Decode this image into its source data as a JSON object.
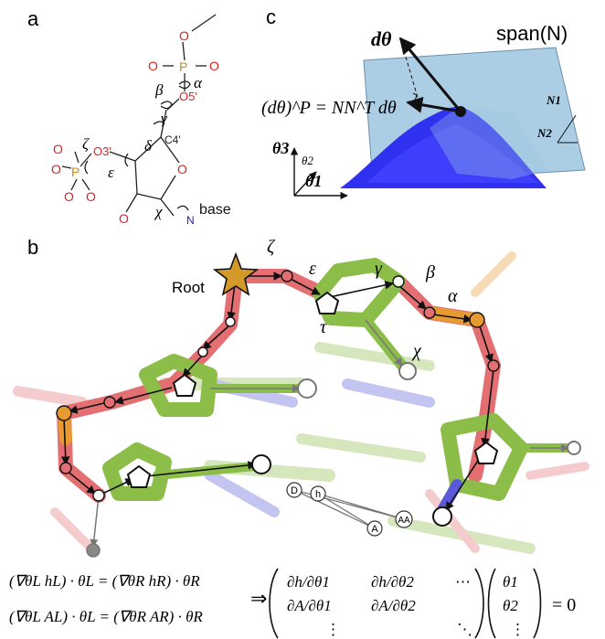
{
  "panel_a": {
    "letter": "a",
    "atoms": {
      "o_top": "O",
      "o_left": "O",
      "o_right": "O",
      "p1": "P",
      "o5": "O5'",
      "c4": "C4'",
      "o3": "O3'",
      "o_l2": "O",
      "o_l3": "O",
      "p2": "P",
      "o_l4": "O",
      "o_ring": "O",
      "o_bottom": "O",
      "n": "N",
      "base": "base"
    },
    "torsions": {
      "alpha": "α",
      "beta": "β",
      "gamma": "γ",
      "delta": "δ",
      "epsilon": "ε",
      "zeta": "ζ",
      "chi": "χ"
    }
  },
  "panel_b": {
    "letter": "b",
    "root_label": "Root",
    "torsions": {
      "zeta": "ζ",
      "epsilon": "ε",
      "gamma": "γ",
      "beta": "β",
      "alpha": "α",
      "tau": "τ",
      "chi": "χ"
    },
    "pair_nodes": {
      "d": "D",
      "h": "h",
      "a": "A",
      "aa": "AA"
    },
    "colors": {
      "backbone_pink": "#e36f73",
      "sugar_green": "#8bbd48",
      "phosphate_orange": "#e69a30",
      "root_star": "#d39a28",
      "base_blue": "#5a5ad8"
    }
  },
  "panel_c": {
    "letter": "c",
    "span_label": "span(N)",
    "dtheta": "dθ",
    "projection_eq": "(dθ)^P = NN^T dθ",
    "n1": "N1",
    "n2": "N2",
    "theta1": "θ1",
    "theta2": "θ2",
    "theta3": "θ3",
    "colors": {
      "plane": "#9cc6e0",
      "surface": "#3030f0"
    }
  },
  "equations": {
    "left_line1": "(∇θL hL) · θL = (∇θR hR) · θR",
    "left_line2": "(∇θL AL) · θL = (∇θR AR) · θR",
    "implies": "⇒",
    "matrix_row1": [
      "∂h/∂θ1",
      "∂h/∂θ2",
      "⋯"
    ],
    "matrix_row2": [
      "∂A/∂θ1",
      "∂A/∂θ2",
      ""
    ],
    "matrix_row3": [
      "⋮",
      "",
      "⋱"
    ],
    "vector": [
      "θ1",
      "θ2",
      "⋮"
    ],
    "rhs": "= 0"
  }
}
